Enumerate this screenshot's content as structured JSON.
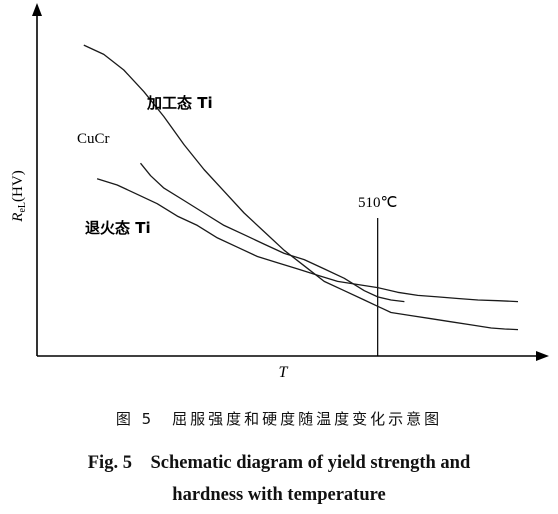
{
  "chart_data": {
    "type": "line",
    "ylabel_base": "R",
    "ylabel_sub": "eL",
    "ylabel_suffix": "(HV)",
    "xlabel": "T",
    "marker": {
      "x": 510,
      "label": "510℃"
    },
    "series": [
      {
        "name": "加工态 Ti",
        "x": [
          70,
          100,
          130,
          160,
          190,
          220,
          250,
          280,
          310,
          340,
          370,
          400,
          430,
          460,
          490,
          510,
          530,
          560,
          590,
          620,
          650,
          680,
          700,
          720
        ],
        "y": [
          100,
          97,
          92,
          85,
          77,
          68,
          60,
          53,
          46,
          40,
          34,
          29,
          24,
          21,
          18,
          16,
          14,
          13,
          12,
          11,
          10,
          9,
          8.7,
          8.5
        ]
      },
      {
        "name": "CuCr",
        "x": [
          155,
          170,
          190,
          220,
          250,
          280,
          310,
          340,
          370,
          400,
          430,
          460,
          490,
          510,
          530,
          550
        ],
        "y": [
          62,
          58,
          54,
          50,
          46,
          42,
          39,
          36,
          33,
          31,
          28,
          25,
          21,
          19,
          18,
          17.5
        ]
      },
      {
        "name": "退火态 Ti",
        "x": [
          90,
          120,
          150,
          180,
          210,
          240,
          270,
          300,
          330,
          360,
          390,
          420,
          450,
          480,
          510,
          540,
          570,
          600,
          630,
          660,
          690,
          720
        ],
        "y": [
          57,
          55,
          52,
          49,
          45,
          42,
          38,
          35,
          32,
          30,
          28,
          26,
          24,
          23,
          22,
          20.5,
          19.5,
          19,
          18.5,
          18,
          17.8,
          17.5
        ]
      }
    ]
  },
  "captions": {
    "cn": "图 5　屈服强度和硬度随温度变化示意图",
    "en_line1": "Fig. 5　Schematic diagram of yield strength and",
    "en_line2": "hardness with temperature"
  }
}
